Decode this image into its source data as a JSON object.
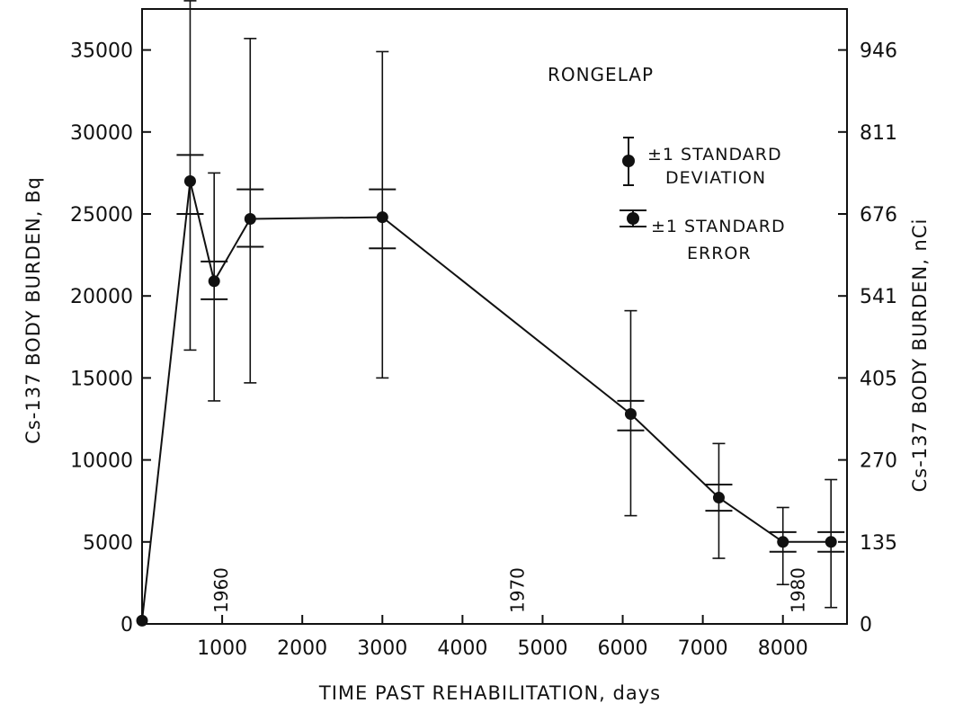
{
  "chart_data": {
    "type": "line",
    "title": "RONGELAP",
    "xlabel": "TIME PAST REHABILITATION, days",
    "ylabel_left": "Cs-137 BODY BURDEN, Bq",
    "ylabel_right": "Cs-137 BODY BURDEN, nCi",
    "xlim": [
      0,
      8800
    ],
    "ylim": [
      0,
      37500
    ],
    "x_ticks": [
      1000,
      2000,
      3000,
      4000,
      5000,
      6000,
      7000,
      8000
    ],
    "y_ticks_left": [
      0,
      5000,
      10000,
      15000,
      20000,
      25000,
      30000,
      35000
    ],
    "y_ticks_right": [
      {
        "label": "0",
        "value": 0
      },
      {
        "label": "135",
        "value": 5000
      },
      {
        "label": "270",
        "value": 10000
      },
      {
        "label": "405",
        "value": 15000
      },
      {
        "label": "541",
        "value": 20000
      },
      {
        "label": "676",
        "value": 25000
      },
      {
        "label": "811",
        "value": 30000
      },
      {
        "label": "946",
        "value": 35000
      }
    ],
    "year_markers": [
      {
        "label": "1960",
        "x": 1000
      },
      {
        "label": "1970",
        "x": 4700
      },
      {
        "label": "1980",
        "x": 8200
      }
    ],
    "legend": [
      {
        "line1": "±1 STANDARD",
        "line2": "DEVIATION"
      },
      {
        "line1": "±1 STANDARD",
        "line2": "ERROR"
      }
    ],
    "legend_placement": "top-right",
    "grid": false,
    "series": [
      {
        "x": [
          0,
          600,
          900,
          1350,
          3000,
          6100,
          7200,
          8000,
          8600
        ],
        "y": [
          200,
          27000,
          20900,
          24700,
          24800,
          12800,
          7700,
          5000,
          5000
        ],
        "sd_low": [
          200,
          16700,
          13600,
          14700,
          15000,
          6600,
          4000,
          2400,
          1000
        ],
        "sd_high": [
          200,
          38000,
          27500,
          35700,
          34900,
          19100,
          11000,
          7100,
          8800
        ],
        "se_low": [
          200,
          25000,
          19800,
          23000,
          22900,
          11800,
          6900,
          4400,
          4400
        ],
        "se_high": [
          200,
          28600,
          22100,
          26500,
          26500,
          13600,
          8500,
          5600,
          5600
        ]
      }
    ]
  }
}
